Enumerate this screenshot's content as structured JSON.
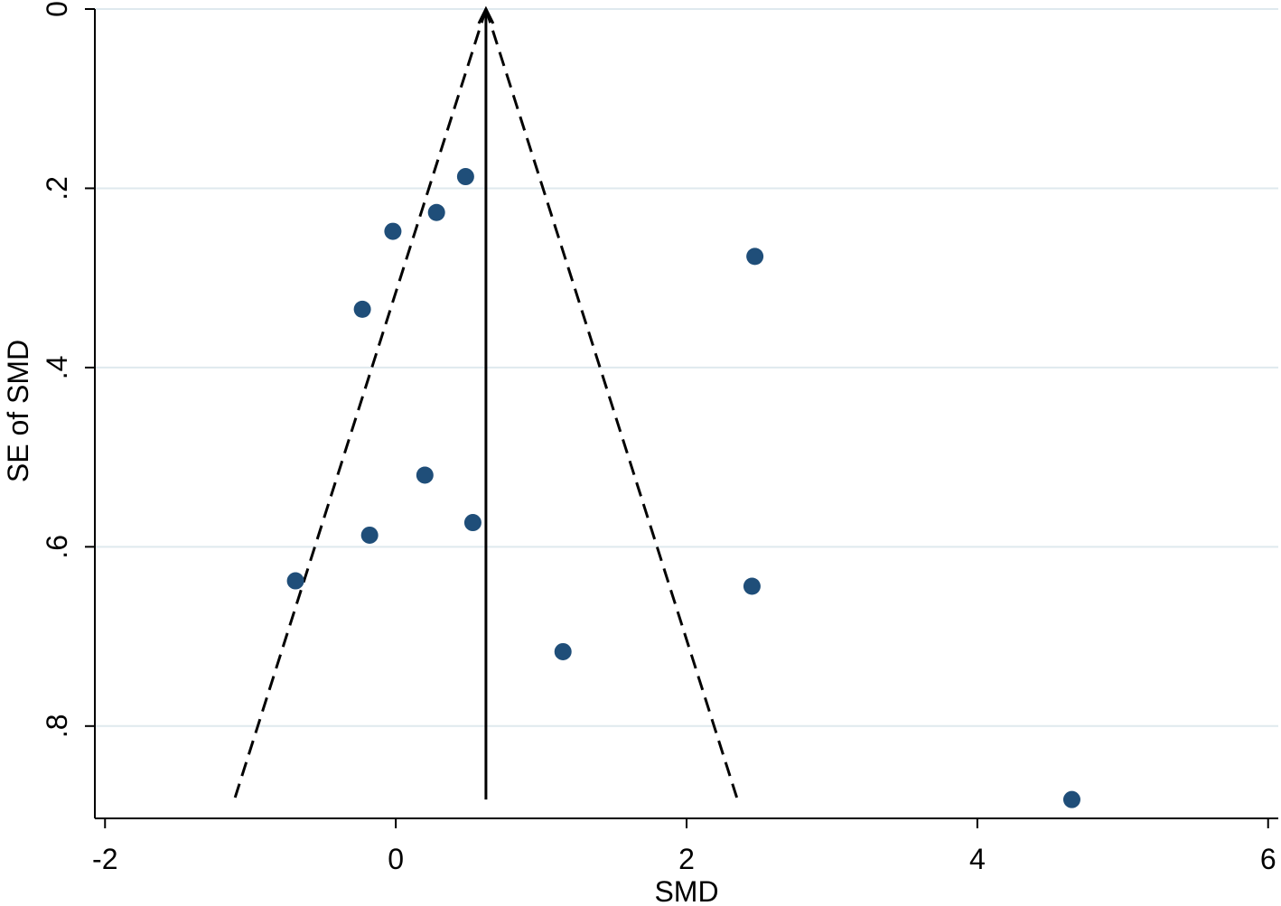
{
  "chart_data": {
    "type": "scatter",
    "title": "",
    "xlabel": "SMD",
    "ylabel": "SE of SMD",
    "xlim": [
      -2.07,
      6.07
    ],
    "ylim": [
      0,
      0.903
    ],
    "y_reversed": true,
    "x_ticks": [
      -2,
      0,
      2,
      4,
      6
    ],
    "x_tick_labels": [
      "-2",
      "0",
      "2",
      "4",
      "6"
    ],
    "y_ticks": [
      0,
      0.2,
      0.4,
      0.6,
      0.8
    ],
    "y_tick_labels": [
      "0",
      ".2",
      ".4",
      ".6",
      ".8"
    ],
    "grid": "horizontal",
    "legend": "none",
    "pooled_estimate": 0.62,
    "pseudo_ci_funnel": {
      "apex": [
        0.62,
        0
      ],
      "left_base": [
        -1.11,
        0.882
      ],
      "right_base": [
        2.35,
        0.882
      ]
    },
    "points": [
      {
        "x": 0.48,
        "y": 0.187
      },
      {
        "x": 0.28,
        "y": 0.227
      },
      {
        "x": -0.02,
        "y": 0.248
      },
      {
        "x": 2.47,
        "y": 0.276
      },
      {
        "x": -0.23,
        "y": 0.335
      },
      {
        "x": 0.2,
        "y": 0.52
      },
      {
        "x": 0.53,
        "y": 0.573
      },
      {
        "x": -0.18,
        "y": 0.587
      },
      {
        "x": -0.69,
        "y": 0.638
      },
      {
        "x": 2.45,
        "y": 0.644
      },
      {
        "x": 1.15,
        "y": 0.717
      },
      {
        "x": 4.65,
        "y": 0.882
      }
    ],
    "colors": {
      "marker": "#1f4e79",
      "grid": "#dfe9ee",
      "axis": "#000000"
    }
  }
}
